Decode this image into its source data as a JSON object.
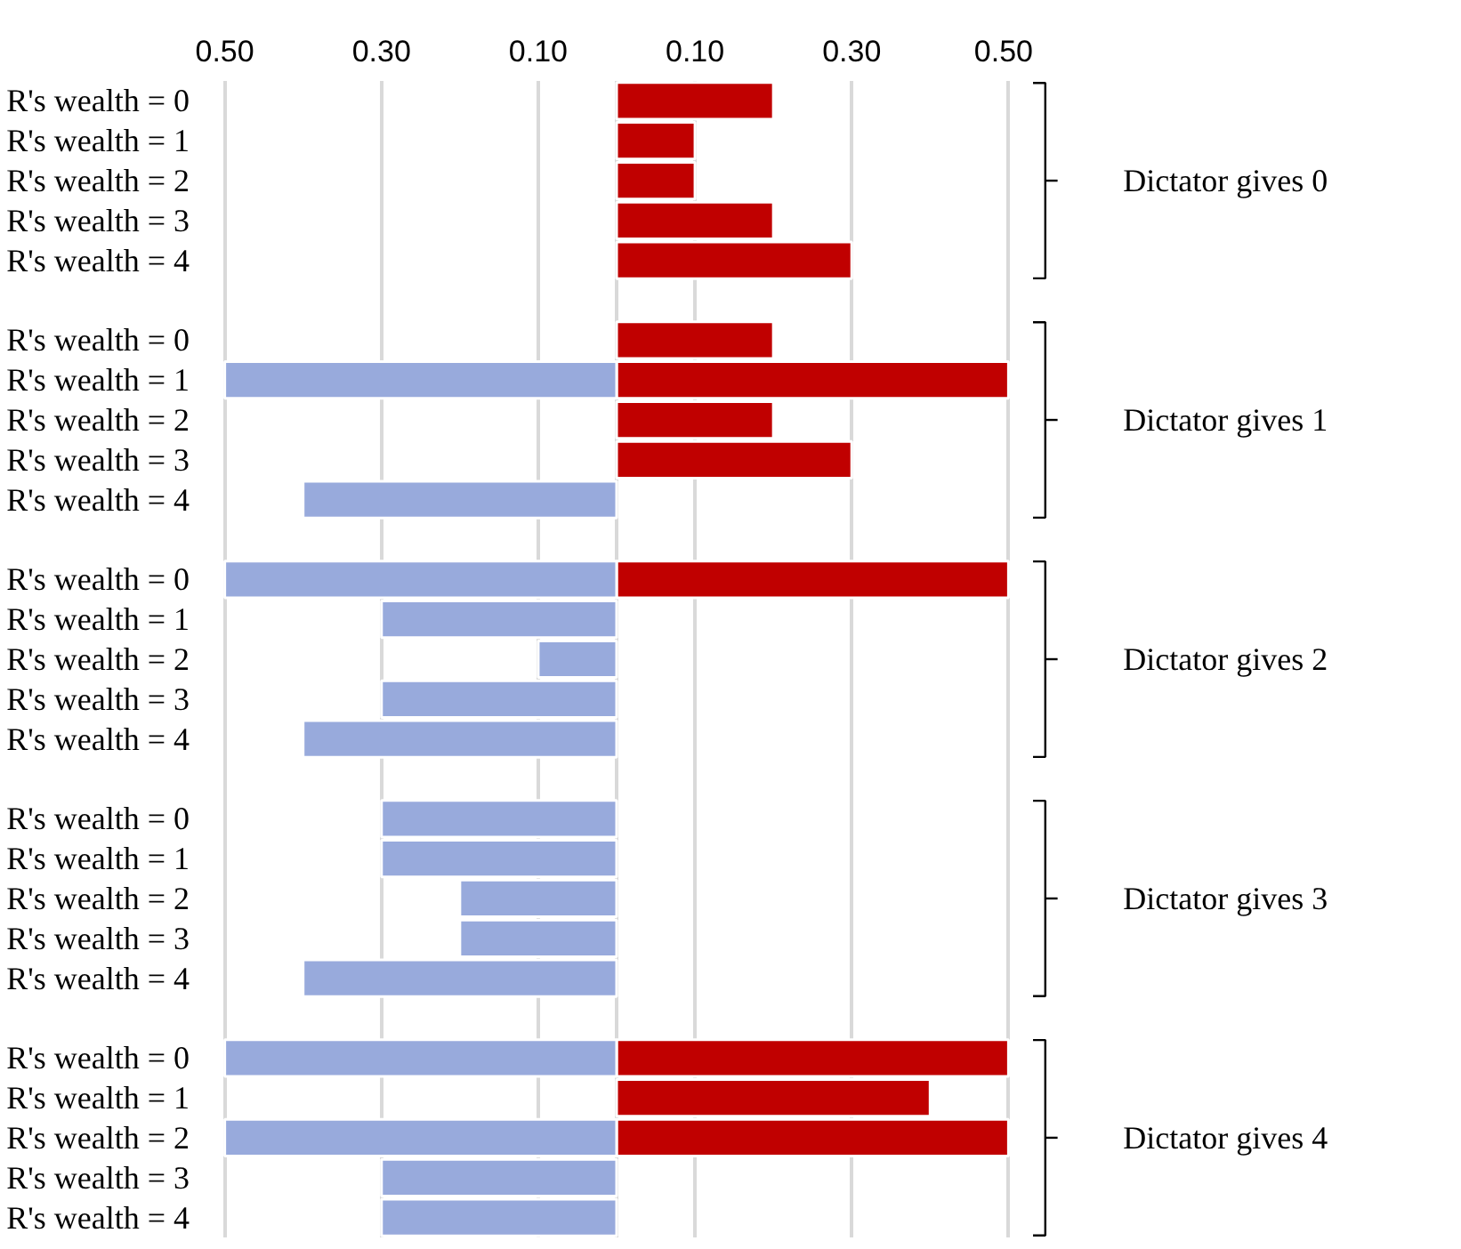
{
  "chart_data": {
    "type": "bar",
    "orientation": "horizontal",
    "categories": [
      "R's wealth = 0",
      "R's wealth = 1",
      "R's wealth = 2",
      "R's wealth = 3",
      "R's wealth = 4",
      null,
      "R's wealth = 0",
      "R's wealth = 1",
      "R's wealth = 2",
      "R's wealth = 3",
      "R's wealth = 4",
      null,
      "R's wealth = 0",
      "R's wealth = 1",
      "R's wealth = 2",
      "R's wealth = 3",
      "R's wealth = 4",
      null,
      "R's wealth = 0",
      "R's wealth = 1",
      "R's wealth = 2",
      "R's wealth = 3",
      "R's wealth = 4",
      null,
      "R's wealth = 0",
      "R's wealth = 1",
      "R's wealth = 2",
      "R's wealth = 3",
      "R's wealth = 4"
    ],
    "series": [
      {
        "color": "#c00000",
        "values": [
          0.2,
          0.1,
          0.1,
          0.2,
          0.3,
          null,
          0.2,
          0.5,
          0.2,
          0.3,
          null,
          null,
          0.5,
          null,
          null,
          null,
          null,
          null,
          null,
          null,
          null,
          null,
          null,
          null,
          0.5,
          0.4,
          0.5,
          null,
          null
        ]
      },
      {
        "color": "#98aadc",
        "values": [
          null,
          null,
          null,
          null,
          null,
          null,
          null,
          -0.5,
          null,
          null,
          -0.4,
          null,
          -0.5,
          -0.3,
          -0.1,
          -0.3,
          -0.4,
          null,
          -0.3,
          -0.3,
          -0.2,
          -0.2,
          -0.4,
          null,
          -0.5,
          null,
          -0.5,
          -0.3,
          -0.3
        ]
      }
    ],
    "xlim": [
      -0.5,
      0.5
    ],
    "xticks": [
      {
        "value": -0.5,
        "label": "0.50"
      },
      {
        "value": -0.3,
        "label": "0.30"
      },
      {
        "value": -0.1,
        "label": "0.10"
      },
      {
        "value": 0,
        "label": null
      },
      {
        "value": 0.1,
        "label": "0.10"
      },
      {
        "value": 0.3,
        "label": "0.30"
      },
      {
        "value": 0.5,
        "label": "0.50"
      }
    ],
    "grid": "x",
    "annotations": [
      "Dictator gives 0",
      "Dictator gives 1",
      "Dictator gives 2",
      "Dictator gives 3",
      "Dictator gives 4"
    ]
  }
}
